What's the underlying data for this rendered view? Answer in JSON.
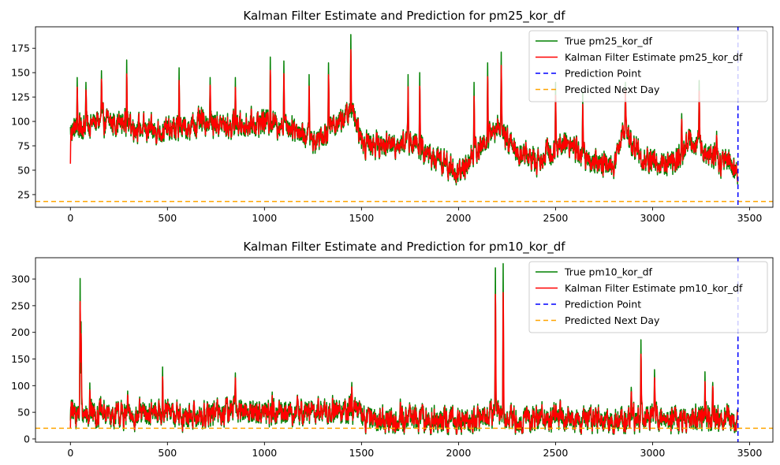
{
  "chart_data": [
    {
      "type": "line",
      "title": "Kalman Filter Estimate and Prediction for pm25_kor_df",
      "xlabel": "",
      "ylabel": "",
      "xlim": [
        -180,
        3620
      ],
      "ylim": [
        12,
        197
      ],
      "xticks": [
        0,
        500,
        1000,
        1500,
        2000,
        2500,
        3000,
        3500
      ],
      "yticks": [
        25,
        50,
        75,
        100,
        125,
        150,
        175
      ],
      "legend_position": "top-right",
      "n_points": 3440,
      "prediction_point_x": 3440,
      "predicted_next_day_y": 18,
      "anchors": [
        [
          0,
          90
        ],
        [
          50,
          95
        ],
        [
          150,
          100
        ],
        [
          290,
          98
        ],
        [
          400,
          90
        ],
        [
          560,
          92
        ],
        [
          700,
          100
        ],
        [
          820,
          95
        ],
        [
          1000,
          100
        ],
        [
          1150,
          95
        ],
        [
          1250,
          80
        ],
        [
          1340,
          95
        ],
        [
          1450,
          110
        ],
        [
          1500,
          80
        ],
        [
          1600,
          75
        ],
        [
          1750,
          80
        ],
        [
          1850,
          65
        ],
        [
          1950,
          55
        ],
        [
          2000,
          45
        ],
        [
          2050,
          60
        ],
        [
          2200,
          95
        ],
        [
          2300,
          70
        ],
        [
          2400,
          60
        ],
        [
          2550,
          80
        ],
        [
          2700,
          55
        ],
        [
          2800,
          55
        ],
        [
          2850,
          95
        ],
        [
          2950,
          60
        ],
        [
          3100,
          55
        ],
        [
          3200,
          80
        ],
        [
          3300,
          65
        ],
        [
          3440,
          50
        ]
      ],
      "spikes": [
        [
          35,
          145
        ],
        [
          80,
          140
        ],
        [
          160,
          152
        ],
        [
          290,
          163
        ],
        [
          560,
          155
        ],
        [
          720,
          145
        ],
        [
          850,
          145
        ],
        [
          1030,
          166
        ],
        [
          1100,
          162
        ],
        [
          1230,
          148
        ],
        [
          1330,
          160
        ],
        [
          1445,
          189
        ],
        [
          1740,
          148
        ],
        [
          1800,
          150
        ],
        [
          2080,
          140
        ],
        [
          2150,
          160
        ],
        [
          2220,
          171
        ],
        [
          2500,
          140
        ],
        [
          2640,
          130
        ],
        [
          2860,
          140
        ],
        [
          3150,
          108
        ],
        [
          3240,
          142
        ],
        [
          3330,
          90
        ]
      ],
      "series": [
        {
          "name": "True pm25_kor_df",
          "color": "#008000"
        },
        {
          "name": "Kalman Filter Estimate pm25_kor_df",
          "color": "#ff0000"
        },
        {
          "name": "Prediction Point",
          "color": "#0000ff",
          "style": "dashed"
        },
        {
          "name": "Predicted Next Day",
          "color": "#ffa500",
          "style": "dashed"
        }
      ]
    },
    {
      "type": "line",
      "title": "Kalman Filter Estimate and Prediction for pm10_kor_df",
      "xlabel": "",
      "ylabel": "",
      "xlim": [
        -180,
        3620
      ],
      "ylim": [
        -6,
        340
      ],
      "xticks": [
        0,
        500,
        1000,
        1500,
        2000,
        2500,
        3000,
        3500
      ],
      "yticks": [
        0,
        50,
        100,
        150,
        200,
        250,
        300
      ],
      "legend_position": "top-right",
      "n_points": 3440,
      "prediction_point_x": 3440,
      "predicted_next_day_y": 20,
      "anchors": [
        [
          0,
          50
        ],
        [
          150,
          48
        ],
        [
          300,
          42
        ],
        [
          480,
          50
        ],
        [
          600,
          40
        ],
        [
          850,
          55
        ],
        [
          1000,
          50
        ],
        [
          1200,
          50
        ],
        [
          1450,
          52
        ],
        [
          1600,
          35
        ],
        [
          1800,
          38
        ],
        [
          2000,
          30
        ],
        [
          2200,
          50
        ],
        [
          2300,
          35
        ],
        [
          2450,
          40
        ],
        [
          2600,
          40
        ],
        [
          2750,
          30
        ],
        [
          2950,
          45
        ],
        [
          3100,
          35
        ],
        [
          3300,
          45
        ],
        [
          3440,
          30
        ]
      ],
      "spikes": [
        [
          50,
          301
        ],
        [
          55,
          220
        ],
        [
          100,
          105
        ],
        [
          295,
          90
        ],
        [
          475,
          135
        ],
        [
          850,
          124
        ],
        [
          1040,
          88
        ],
        [
          1450,
          106
        ],
        [
          1700,
          75
        ],
        [
          2190,
          321
        ],
        [
          2230,
          329
        ],
        [
          2430,
          70
        ],
        [
          2890,
          97
        ],
        [
          2940,
          186
        ],
        [
          3010,
          130
        ],
        [
          3270,
          126
        ],
        [
          3310,
          106
        ]
      ],
      "series": [
        {
          "name": "True pm10_kor_df",
          "color": "#008000"
        },
        {
          "name": "Kalman Filter Estimate pm10_kor_df",
          "color": "#ff0000"
        },
        {
          "name": "Prediction Point",
          "color": "#0000ff",
          "style": "dashed"
        },
        {
          "name": "Predicted Next Day",
          "color": "#ffa500",
          "style": "dashed"
        }
      ]
    }
  ]
}
